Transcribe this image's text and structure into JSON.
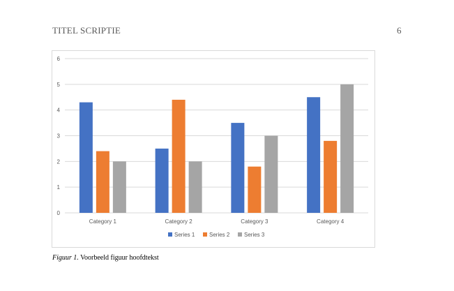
{
  "header": {
    "running_head": "TITEL SCRIPTIE",
    "page_number": "6"
  },
  "caption": {
    "label": "Figuur 1.",
    "text": "Voorbeeld figuur hoofdtekst"
  },
  "colors": {
    "series1": "#4472C4",
    "series2": "#ED7D31",
    "series3": "#A5A5A5",
    "grid": "#d9d9d9",
    "axis_text": "#595959"
  },
  "chart_data": {
    "type": "bar",
    "title": "",
    "xlabel": "",
    "ylabel": "",
    "categories": [
      "Category 1",
      "Category 2",
      "Category 3",
      "Category 4"
    ],
    "series": [
      {
        "name": "Series 1",
        "values": [
          4.3,
          2.5,
          3.5,
          4.5
        ]
      },
      {
        "name": "Series 2",
        "values": [
          2.4,
          4.4,
          1.8,
          2.8
        ]
      },
      {
        "name": "Series 3",
        "values": [
          2,
          2,
          3,
          5
        ]
      }
    ],
    "ylim": [
      0,
      6
    ],
    "yticks": [
      "0",
      "1",
      "2",
      "3",
      "4",
      "5",
      "6"
    ],
    "grid": true,
    "legend": "bottom"
  }
}
